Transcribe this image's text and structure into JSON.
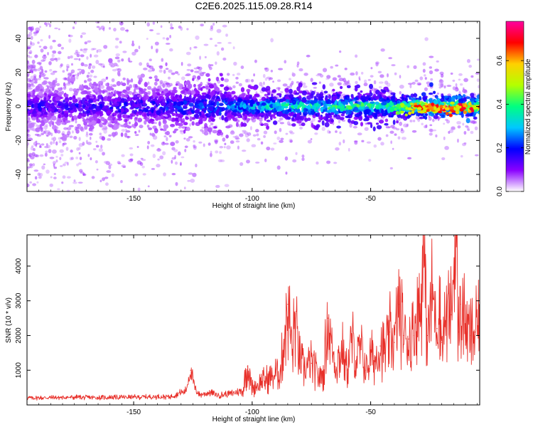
{
  "figure_title": "C2E6.2025.115.09.28.R14",
  "chart_data": [
    {
      "type": "heatmap",
      "title": "",
      "xlabel": "Height of straight line (km)",
      "ylabel": "Frequency (Hz)",
      "xlim": [
        -195,
        -4
      ],
      "ylim": [
        -50,
        50
      ],
      "xticks": [
        -150,
        -100,
        -50
      ],
      "yticks": [
        -40,
        -20,
        0,
        20,
        40
      ],
      "colorbar": {
        "label": "Normalized spectral amplitude",
        "range": [
          0,
          0.78
        ],
        "ticks": [
          0,
          0.2,
          0.4,
          0.6
        ],
        "tick_labels": [
          "0.0",
          "0.2",
          "0.4",
          "0.6"
        ],
        "colormap": [
          "#ffffff",
          "#8a00ff",
          "#0000ff",
          "#00c8ff",
          "#00ff80",
          "#b4ff00",
          "#ffd000",
          "#ff0000",
          "#ff00a0"
        ]
      },
      "signal_band": {
        "center_frequency_hz": 0,
        "amplitude_trend": [
          {
            "x": -190,
            "amp": 0.18
          },
          {
            "x": -150,
            "amp": 0.2
          },
          {
            "x": -120,
            "amp": 0.25
          },
          {
            "x": -90,
            "amp": 0.4
          },
          {
            "x": -60,
            "amp": 0.45
          },
          {
            "x": -40,
            "amp": 0.45
          },
          {
            "x": -30,
            "amp": 0.7
          },
          {
            "x": -10,
            "amp": 0.72
          }
        ]
      }
    },
    {
      "type": "line",
      "title": "",
      "xlabel": "Height of straight line (km)",
      "ylabel": "SNR (10 * v/v)",
      "xlim": [
        -195,
        -4
      ],
      "ylim": [
        0,
        4900
      ],
      "xticks": [
        -150,
        -100,
        -50
      ],
      "yticks": [
        1000,
        2000,
        3000,
        4000
      ],
      "series": [
        {
          "color": "#e8302a",
          "x": [
            -195,
            -185,
            -175,
            -165,
            -155,
            -145,
            -135,
            -128,
            -126,
            -124,
            -122,
            -118,
            -114,
            -110,
            -104,
            -102,
            -100,
            -98,
            -95,
            -92,
            -88,
            -85,
            -83,
            -82,
            -80,
            -78,
            -75,
            -72,
            -70,
            -68,
            -65,
            -62,
            -60,
            -58,
            -56,
            -54,
            -52,
            -50,
            -48,
            -46,
            -44,
            -42,
            -40,
            -38,
            -36,
            -34,
            -32,
            -30,
            -29,
            -28,
            -26,
            -24,
            -22,
            -21,
            -20,
            -18,
            -16,
            -14,
            -13,
            -12,
            -10,
            -8,
            -6,
            -4
          ],
          "y": [
            200,
            210,
            220,
            210,
            220,
            230,
            240,
            400,
            1000,
            450,
            300,
            350,
            280,
            320,
            400,
            1100,
            500,
            550,
            700,
            800,
            1000,
            2900,
            1500,
            2500,
            1300,
            1000,
            1200,
            800,
            900,
            2500,
            1100,
            1600,
            1000,
            1900,
            1300,
            1600,
            1000,
            1400,
            1300,
            1700,
            1500,
            2100,
            1800,
            2900,
            2000,
            1900,
            2000,
            3000,
            2400,
            4600,
            2000,
            3200,
            2200,
            3300,
            1800,
            2600,
            2600,
            4900,
            2100,
            2900,
            2300,
            2000,
            2100,
            2300
          ]
        }
      ]
    }
  ]
}
